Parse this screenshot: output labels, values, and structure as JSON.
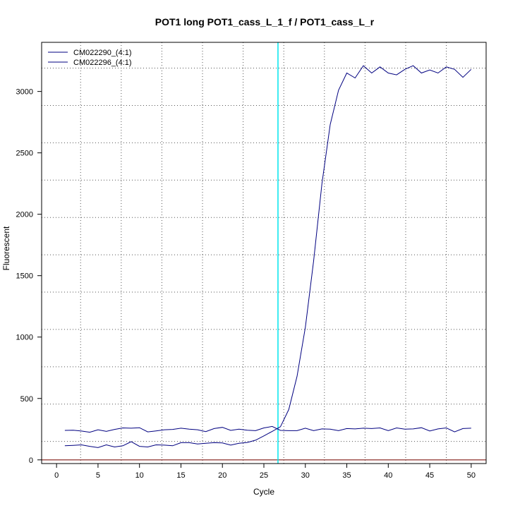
{
  "chart_data": {
    "type": "line",
    "title": "POT1 long POT1_cass_L_1_f / POT1_cass_L_r",
    "xlabel": "Cycle",
    "ylabel": "Fluorescent",
    "xlim": [
      -1.8,
      51.8
    ],
    "ylim": [
      -30,
      3400
    ],
    "x_ticks": [
      0,
      5,
      10,
      15,
      20,
      25,
      30,
      35,
      40,
      45,
      50
    ],
    "y_ticks": [
      0,
      500,
      1000,
      1500,
      2000,
      2500,
      3000
    ],
    "grid": true,
    "legend_position": "top-left",
    "threshold": {
      "cycle": 26.7,
      "color": "#00e5ee"
    },
    "baseline": {
      "value": 0,
      "color": "#a0524d"
    },
    "series": [
      {
        "name": "CM022290_(4:1)",
        "color": "#000080",
        "x": [
          1,
          2,
          3,
          4,
          5,
          6,
          7,
          8,
          9,
          10,
          11,
          12,
          13,
          14,
          15,
          16,
          17,
          18,
          19,
          20,
          21,
          22,
          23,
          24,
          25,
          26,
          27,
          28,
          29,
          30,
          31,
          32,
          33,
          34,
          35,
          36,
          37,
          38,
          39,
          40,
          41,
          42,
          43,
          44,
          45,
          46,
          47,
          48,
          49,
          50
        ],
        "values": [
          115,
          118,
          122,
          110,
          100,
          122,
          105,
          115,
          148,
          110,
          105,
          122,
          120,
          115,
          140,
          140,
          130,
          135,
          140,
          138,
          120,
          135,
          142,
          160,
          195,
          232,
          270,
          410,
          680,
          1080,
          1620,
          2250,
          2730,
          3010,
          3150,
          3110,
          3210,
          3150,
          3200,
          3150,
          3135,
          3180,
          3210,
          3150,
          3175,
          3150,
          3200,
          3180,
          3115,
          3180
        ]
      },
      {
        "name": "CM022296_(4:1)",
        "color": "#000080",
        "x": [
          1,
          2,
          3,
          4,
          5,
          6,
          7,
          8,
          9,
          10,
          11,
          12,
          13,
          14,
          15,
          16,
          17,
          18,
          19,
          20,
          21,
          22,
          23,
          24,
          25,
          26,
          27,
          28,
          29,
          30,
          31,
          32,
          33,
          34,
          35,
          36,
          37,
          38,
          39,
          40,
          41,
          42,
          43,
          44,
          45,
          46,
          47,
          48,
          49,
          50
        ],
        "values": [
          240,
          242,
          235,
          225,
          245,
          232,
          248,
          260,
          258,
          262,
          228,
          236,
          245,
          248,
          258,
          250,
          245,
          230,
          255,
          265,
          240,
          250,
          242,
          238,
          260,
          272,
          240,
          238,
          238,
          258,
          238,
          252,
          250,
          238,
          255,
          252,
          258,
          255,
          260,
          238,
          260,
          250,
          252,
          262,
          235,
          252,
          260,
          228,
          255,
          258
        ]
      }
    ]
  }
}
